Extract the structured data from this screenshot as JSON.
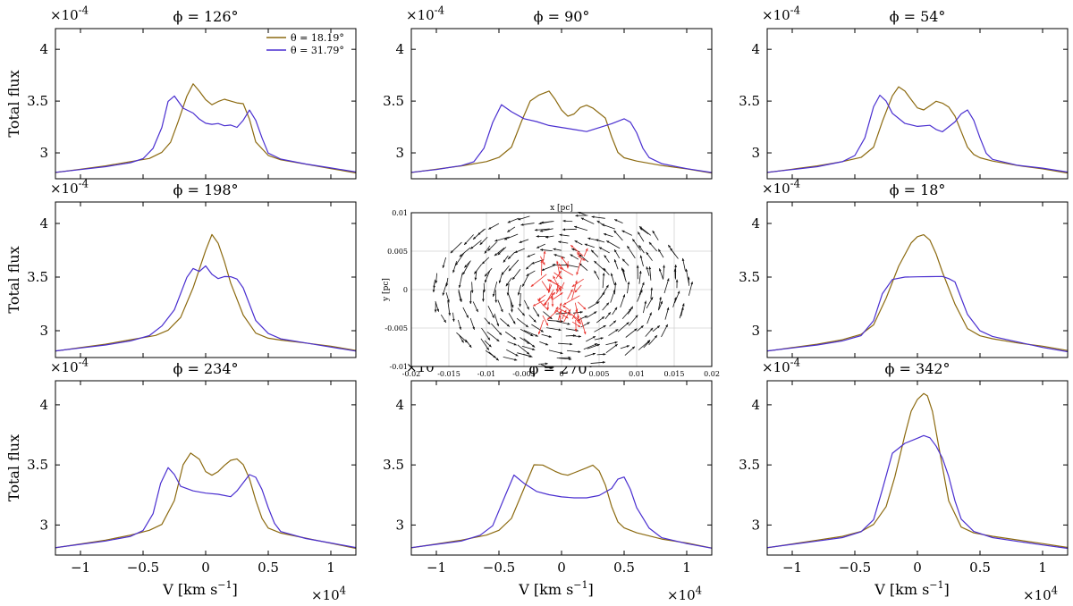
{
  "figure": {
    "ylabel": "Total flux",
    "xlabel": "V [km s",
    "xlabel_exp": "−1",
    "xlabel_close": "]",
    "y_multiplier": "×10",
    "y_multiplier_exp": "-4",
    "x_multiplier": "×10",
    "x_multiplier_exp": "4"
  },
  "chart_data": [
    {
      "id": "p1",
      "type": "line",
      "title": "ϕ = 126°",
      "xlim": [
        -1.2,
        1.2
      ],
      "ylim": [
        2.75,
        4.2
      ],
      "xticks": [
        -1,
        -0.5,
        0,
        0.5,
        1
      ],
      "yticks": [
        3,
        3.5,
        4
      ],
      "legend": {
        "placement": "top-right",
        "entries": [
          "θ = 18.19°",
          "θ = 31.79°"
        ]
      },
      "series": [
        {
          "name": "θ = 18.19°",
          "color": "#8c6a10",
          "x": [
            -1.2,
            -1.0,
            -0.8,
            -0.6,
            -0.45,
            -0.35,
            -0.28,
            -0.22,
            -0.15,
            -0.1,
            -0.05,
            0.0,
            0.05,
            0.1,
            0.15,
            0.2,
            0.25,
            0.3,
            0.35,
            0.4,
            0.5,
            0.6,
            0.8,
            1.0,
            1.2
          ],
          "y": [
            2.81,
            2.84,
            2.87,
            2.91,
            2.94,
            3.0,
            3.1,
            3.3,
            3.55,
            3.67,
            3.6,
            3.52,
            3.47,
            3.5,
            3.52,
            3.5,
            3.48,
            3.47,
            3.32,
            3.1,
            2.97,
            2.93,
            2.89,
            2.85,
            2.81
          ]
        },
        {
          "name": "θ = 31.79°",
          "color": "#4a2fd0",
          "x": [
            -1.2,
            -1.0,
            -0.8,
            -0.6,
            -0.5,
            -0.42,
            -0.35,
            -0.3,
            -0.25,
            -0.18,
            -0.1,
            -0.05,
            0.0,
            0.05,
            0.1,
            0.15,
            0.2,
            0.25,
            0.3,
            0.35,
            0.4,
            0.45,
            0.5,
            0.6,
            0.8,
            1.0,
            1.2
          ],
          "y": [
            2.81,
            2.84,
            2.87,
            2.91,
            2.95,
            3.05,
            3.25,
            3.5,
            3.55,
            3.43,
            3.38,
            3.32,
            3.28,
            3.27,
            3.28,
            3.26,
            3.27,
            3.25,
            3.32,
            3.42,
            3.32,
            3.15,
            3.0,
            2.94,
            2.89,
            2.85,
            2.81
          ]
        }
      ]
    },
    {
      "id": "p2",
      "type": "line",
      "title": "ϕ = 90°",
      "xlim": [
        -1.2,
        1.2
      ],
      "ylim": [
        2.75,
        4.2
      ],
      "xticks": [
        -1,
        -0.5,
        0,
        0.5,
        1
      ],
      "yticks": [
        3,
        3.5,
        4
      ],
      "series": [
        {
          "name": "θ = 18.19°",
          "color": "#8c6a10",
          "x": [
            -1.2,
            -1.0,
            -0.8,
            -0.6,
            -0.5,
            -0.4,
            -0.32,
            -0.25,
            -0.18,
            -0.1,
            -0.05,
            0.0,
            0.05,
            0.1,
            0.15,
            0.2,
            0.25,
            0.3,
            0.35,
            0.4,
            0.45,
            0.5,
            0.6,
            0.8,
            1.0,
            1.2
          ],
          "y": [
            2.81,
            2.84,
            2.87,
            2.91,
            2.95,
            3.05,
            3.3,
            3.5,
            3.56,
            3.6,
            3.52,
            3.42,
            3.36,
            3.38,
            3.44,
            3.46,
            3.43,
            3.38,
            3.33,
            3.15,
            3.0,
            2.95,
            2.92,
            2.88,
            2.85,
            2.81
          ]
        },
        {
          "name": "θ = 31.79°",
          "color": "#4a2fd0",
          "x": [
            -1.2,
            -1.0,
            -0.8,
            -0.7,
            -0.62,
            -0.55,
            -0.48,
            -0.4,
            -0.3,
            -0.2,
            -0.1,
            0.0,
            0.1,
            0.2,
            0.3,
            0.4,
            0.5,
            0.55,
            0.6,
            0.65,
            0.7,
            0.8,
            1.0,
            1.2
          ],
          "y": [
            2.81,
            2.84,
            2.88,
            2.92,
            3.05,
            3.3,
            3.47,
            3.4,
            3.33,
            3.3,
            3.26,
            3.24,
            3.22,
            3.2,
            3.24,
            3.28,
            3.33,
            3.3,
            3.2,
            3.05,
            2.96,
            2.9,
            2.85,
            2.81
          ]
        }
      ]
    },
    {
      "id": "p3",
      "type": "line",
      "title": "ϕ = 54°",
      "xlim": [
        -1.2,
        1.2
      ],
      "ylim": [
        2.75,
        4.2
      ],
      "xticks": [
        -1,
        -0.5,
        0,
        0.5,
        1
      ],
      "yticks": [
        3,
        3.5,
        4
      ],
      "series": [
        {
          "name": "θ = 18.19°",
          "color": "#8c6a10",
          "x": [
            -1.2,
            -1.0,
            -0.8,
            -0.6,
            -0.45,
            -0.35,
            -0.28,
            -0.2,
            -0.15,
            -0.1,
            -0.05,
            0.0,
            0.05,
            0.1,
            0.15,
            0.2,
            0.25,
            0.3,
            0.35,
            0.4,
            0.45,
            0.5,
            0.6,
            0.8,
            1.0,
            1.2
          ],
          "y": [
            2.81,
            2.84,
            2.87,
            2.91,
            2.95,
            3.05,
            3.3,
            3.55,
            3.64,
            3.6,
            3.52,
            3.44,
            3.42,
            3.46,
            3.5,
            3.48,
            3.44,
            3.35,
            3.2,
            3.05,
            2.98,
            2.95,
            2.92,
            2.88,
            2.85,
            2.81
          ]
        },
        {
          "name": "θ = 31.79°",
          "color": "#4a2fd0",
          "x": [
            -1.2,
            -1.0,
            -0.8,
            -0.6,
            -0.5,
            -0.42,
            -0.35,
            -0.3,
            -0.25,
            -0.2,
            -0.1,
            0.0,
            0.1,
            0.15,
            0.2,
            0.25,
            0.3,
            0.35,
            0.4,
            0.45,
            0.5,
            0.55,
            0.6,
            0.8,
            1.0,
            1.2
          ],
          "y": [
            2.81,
            2.84,
            2.87,
            2.92,
            2.98,
            3.15,
            3.45,
            3.56,
            3.5,
            3.38,
            3.28,
            3.25,
            3.26,
            3.22,
            3.2,
            3.25,
            3.3,
            3.38,
            3.42,
            3.32,
            3.15,
            3.0,
            2.94,
            2.88,
            2.85,
            2.81
          ]
        }
      ]
    },
    {
      "id": "p4",
      "type": "line",
      "title": "ϕ = 198°",
      "xlim": [
        -1.2,
        1.2
      ],
      "ylim": [
        2.75,
        4.2
      ],
      "xticks": [
        -1,
        -0.5,
        0,
        0.5,
        1
      ],
      "yticks": [
        3,
        3.5,
        4
      ],
      "series": [
        {
          "name": "θ = 18.19°",
          "color": "#8c6a10",
          "x": [
            -1.2,
            -1.0,
            -0.8,
            -0.6,
            -0.4,
            -0.3,
            -0.2,
            -0.1,
            0.0,
            0.05,
            0.1,
            0.15,
            0.2,
            0.3,
            0.4,
            0.5,
            0.6,
            0.8,
            1.0,
            1.2
          ],
          "y": [
            2.81,
            2.84,
            2.87,
            2.91,
            2.95,
            3.0,
            3.12,
            3.4,
            3.75,
            3.9,
            3.82,
            3.65,
            3.45,
            3.15,
            2.98,
            2.93,
            2.91,
            2.88,
            2.85,
            2.81
          ]
        },
        {
          "name": "θ = 31.79°",
          "color": "#4a2fd0",
          "x": [
            -1.2,
            -1.0,
            -0.8,
            -0.6,
            -0.45,
            -0.35,
            -0.25,
            -0.15,
            -0.1,
            -0.05,
            0.0,
            0.05,
            0.1,
            0.15,
            0.2,
            0.25,
            0.3,
            0.35,
            0.4,
            0.5,
            0.6,
            0.8,
            1.0,
            1.2
          ],
          "y": [
            2.81,
            2.84,
            2.87,
            2.91,
            2.96,
            3.05,
            3.2,
            3.5,
            3.58,
            3.55,
            3.6,
            3.52,
            3.48,
            3.5,
            3.5,
            3.48,
            3.4,
            3.25,
            3.1,
            2.98,
            2.93,
            2.89,
            2.85,
            2.81
          ]
        }
      ]
    },
    {
      "id": "p6",
      "type": "line",
      "title": "ϕ = 18°",
      "xlim": [
        -1.2,
        1.2
      ],
      "ylim": [
        2.75,
        4.2
      ],
      "xticks": [
        -1,
        -0.5,
        0,
        0.5,
        1
      ],
      "yticks": [
        3,
        3.5,
        4
      ],
      "series": [
        {
          "name": "θ = 18.19°",
          "color": "#8c6a10",
          "x": [
            -1.2,
            -1.0,
            -0.8,
            -0.6,
            -0.45,
            -0.35,
            -0.25,
            -0.15,
            -0.05,
            0.0,
            0.05,
            0.1,
            0.15,
            0.2,
            0.3,
            0.4,
            0.5,
            0.6,
            0.8,
            1.0,
            1.2
          ],
          "y": [
            2.81,
            2.84,
            2.87,
            2.91,
            2.96,
            3.05,
            3.3,
            3.6,
            3.82,
            3.88,
            3.9,
            3.85,
            3.72,
            3.55,
            3.25,
            3.02,
            2.95,
            2.92,
            2.88,
            2.85,
            2.81
          ]
        },
        {
          "name": "θ = 31.79°",
          "color": "#4a2fd0",
          "x": [
            -1.2,
            -1.0,
            -0.8,
            -0.6,
            -0.45,
            -0.35,
            -0.28,
            -0.2,
            -0.1,
            0.0,
            0.1,
            0.2,
            0.25,
            0.3,
            0.35,
            0.4,
            0.5,
            0.6,
            0.8,
            1.0,
            1.2
          ],
          "y": [
            2.81,
            2.84,
            2.87,
            2.91,
            2.96,
            3.1,
            3.35,
            3.48,
            3.5,
            3.5,
            3.5,
            3.5,
            3.48,
            3.45,
            3.3,
            3.15,
            3.0,
            2.95,
            2.9,
            2.85,
            2.81
          ]
        }
      ]
    },
    {
      "id": "p7",
      "type": "line",
      "title": "ϕ = 234°",
      "xlim": [
        -1.2,
        1.2
      ],
      "ylim": [
        2.75,
        4.2
      ],
      "xticks": [
        -1,
        -0.5,
        0,
        0.5,
        1
      ],
      "yticks": [
        3,
        3.5,
        4
      ],
      "series": [
        {
          "name": "θ = 18.19°",
          "color": "#8c6a10",
          "x": [
            -1.2,
            -1.0,
            -0.8,
            -0.6,
            -0.45,
            -0.35,
            -0.25,
            -0.18,
            -0.12,
            -0.05,
            0.0,
            0.05,
            0.1,
            0.15,
            0.2,
            0.25,
            0.3,
            0.35,
            0.4,
            0.45,
            0.5,
            0.6,
            0.8,
            1.0,
            1.2
          ],
          "y": [
            2.81,
            2.84,
            2.87,
            2.91,
            2.95,
            3.0,
            3.2,
            3.5,
            3.6,
            3.55,
            3.45,
            3.42,
            3.45,
            3.5,
            3.54,
            3.55,
            3.5,
            3.38,
            3.2,
            3.05,
            2.97,
            2.93,
            2.89,
            2.85,
            2.81
          ]
        },
        {
          "name": "θ = 31.79°",
          "color": "#4a2fd0",
          "x": [
            -1.2,
            -1.0,
            -0.8,
            -0.6,
            -0.5,
            -0.42,
            -0.36,
            -0.3,
            -0.25,
            -0.2,
            -0.1,
            0.0,
            0.1,
            0.2,
            0.25,
            0.3,
            0.35,
            0.4,
            0.45,
            0.5,
            0.55,
            0.6,
            0.8,
            1.0,
            1.2
          ],
          "y": [
            2.81,
            2.84,
            2.87,
            2.91,
            2.96,
            3.1,
            3.35,
            3.48,
            3.42,
            3.32,
            3.28,
            3.26,
            3.25,
            3.23,
            3.28,
            3.35,
            3.42,
            3.4,
            3.3,
            3.15,
            3.02,
            2.95,
            2.89,
            2.85,
            2.81
          ]
        }
      ]
    },
    {
      "id": "p8",
      "type": "line",
      "title": "ϕ = 270°",
      "xlim": [
        -1.2,
        1.2
      ],
      "ylim": [
        2.75,
        4.2
      ],
      "xticks": [
        -1,
        -0.5,
        0,
        0.5,
        1
      ],
      "yticks": [
        3,
        3.5,
        4
      ],
      "series": [
        {
          "name": "θ = 18.19°",
          "color": "#8c6a10",
          "x": [
            -1.2,
            -1.0,
            -0.8,
            -0.6,
            -0.5,
            -0.4,
            -0.3,
            -0.22,
            -0.15,
            -0.05,
            0.0,
            0.05,
            0.1,
            0.2,
            0.25,
            0.3,
            0.35,
            0.4,
            0.45,
            0.5,
            0.6,
            0.8,
            1.0,
            1.2
          ],
          "y": [
            2.81,
            2.84,
            2.87,
            2.91,
            2.95,
            3.05,
            3.3,
            3.5,
            3.5,
            3.45,
            3.43,
            3.42,
            3.44,
            3.48,
            3.5,
            3.45,
            3.33,
            3.15,
            3.02,
            2.97,
            2.93,
            2.88,
            2.85,
            2.81
          ]
        },
        {
          "name": "θ = 31.79°",
          "color": "#4a2fd0",
          "x": [
            -1.2,
            -1.0,
            -0.8,
            -0.65,
            -0.55,
            -0.45,
            -0.38,
            -0.3,
            -0.2,
            -0.1,
            0.0,
            0.1,
            0.2,
            0.3,
            0.4,
            0.45,
            0.5,
            0.55,
            0.6,
            0.7,
            0.8,
            1.0,
            1.2
          ],
          "y": [
            2.81,
            2.84,
            2.87,
            2.92,
            3.0,
            3.25,
            3.42,
            3.35,
            3.28,
            3.25,
            3.23,
            3.22,
            3.22,
            3.24,
            3.3,
            3.38,
            3.4,
            3.3,
            3.15,
            2.98,
            2.9,
            2.85,
            2.81
          ]
        }
      ]
    },
    {
      "id": "p9",
      "type": "line",
      "title": "ϕ = 342°",
      "xlim": [
        -1.2,
        1.2
      ],
      "ylim": [
        2.75,
        4.2
      ],
      "xticks": [
        -1,
        -0.5,
        0,
        0.5,
        1
      ],
      "yticks": [
        3,
        3.5,
        4
      ],
      "series": [
        {
          "name": "θ = 18.19°",
          "color": "#8c6a10",
          "x": [
            -1.2,
            -1.0,
            -0.8,
            -0.6,
            -0.45,
            -0.35,
            -0.25,
            -0.18,
            -0.1,
            -0.05,
            0.0,
            0.05,
            0.08,
            0.12,
            0.18,
            0.25,
            0.35,
            0.45,
            0.6,
            0.8,
            1.0,
            1.2
          ],
          "y": [
            2.81,
            2.84,
            2.87,
            2.9,
            2.94,
            3.0,
            3.15,
            3.4,
            3.75,
            3.95,
            4.05,
            4.1,
            4.08,
            3.95,
            3.6,
            3.2,
            2.98,
            2.93,
            2.9,
            2.87,
            2.84,
            2.81
          ]
        },
        {
          "name": "θ = 31.79°",
          "color": "#4a2fd0",
          "x": [
            -1.2,
            -1.0,
            -0.8,
            -0.6,
            -0.45,
            -0.35,
            -0.28,
            -0.2,
            -0.1,
            0.0,
            0.05,
            0.1,
            0.15,
            0.2,
            0.25,
            0.3,
            0.35,
            0.45,
            0.6,
            0.8,
            1.0,
            1.2
          ],
          "y": [
            2.81,
            2.84,
            2.87,
            2.9,
            2.95,
            3.05,
            3.3,
            3.6,
            3.68,
            3.72,
            3.74,
            3.72,
            3.65,
            3.55,
            3.4,
            3.2,
            3.05,
            2.95,
            2.9,
            2.87,
            2.84,
            2.81
          ]
        }
      ]
    },
    {
      "id": "center",
      "type": "scatter",
      "subtype": "velocity-field",
      "xlabel": "x [pc]",
      "ylabel": "y [pc]",
      "xlim": [
        -0.02,
        0.02
      ],
      "ylim": [
        -0.01,
        0.01
      ],
      "xtick_labels": [
        "-0.02",
        "-0.015",
        "-0.01",
        "-0.005",
        "0",
        "0.005",
        "0.01",
        "0.015",
        "0.02"
      ],
      "ytick_labels": [
        "-0.01",
        "-0.005",
        "0",
        "0.005",
        "0.01"
      ],
      "grid": true,
      "colors": {
        "outer": "#111111",
        "inner": "#e8302a"
      },
      "field": {
        "inner_radius": 0.004,
        "outer_radius": 0.017,
        "ring_count": 8,
        "arrow_length": 0.0016
      }
    }
  ]
}
